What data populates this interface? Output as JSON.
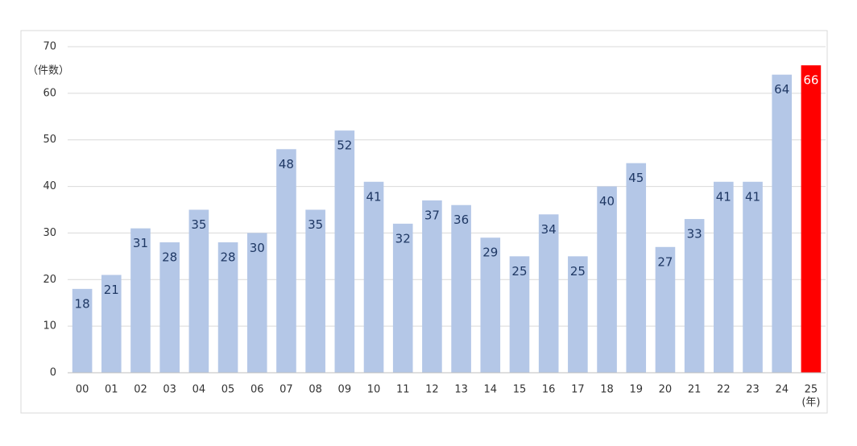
{
  "chart_data": {
    "type": "bar",
    "y_axis_label": "（件数）",
    "x_axis_label": "(年)",
    "categories": [
      "00",
      "01",
      "02",
      "03",
      "04",
      "05",
      "06",
      "07",
      "08",
      "09",
      "10",
      "11",
      "12",
      "13",
      "14",
      "15",
      "16",
      "17",
      "18",
      "19",
      "20",
      "21",
      "22",
      "23",
      "24",
      "25"
    ],
    "values": [
      18,
      21,
      31,
      28,
      35,
      28,
      30,
      48,
      35,
      52,
      41,
      32,
      37,
      36,
      29,
      25,
      34,
      25,
      40,
      45,
      27,
      33,
      41,
      41,
      64,
      66
    ],
    "color": "#b4c7e7",
    "colors": [
      "#b4c7e7",
      "#b4c7e7",
      "#b4c7e7",
      "#b4c7e7",
      "#b4c7e7",
      "#b4c7e7",
      "#b4c7e7",
      "#b4c7e7",
      "#b4c7e7",
      "#b4c7e7",
      "#b4c7e7",
      "#b4c7e7",
      "#b4c7e7",
      "#b4c7e7",
      "#b4c7e7",
      "#b4c7e7",
      "#b4c7e7",
      "#b4c7e7",
      "#b4c7e7",
      "#b4c7e7",
      "#b4c7e7",
      "#b4c7e7",
      "#b4c7e7",
      "#b4c7e7",
      "#b4c7e7",
      "#ff0000"
    ],
    "ylim": [
      0,
      70
    ],
    "yticks": [
      0,
      10,
      20,
      30,
      40,
      50,
      60,
      70
    ],
    "grid": true
  }
}
